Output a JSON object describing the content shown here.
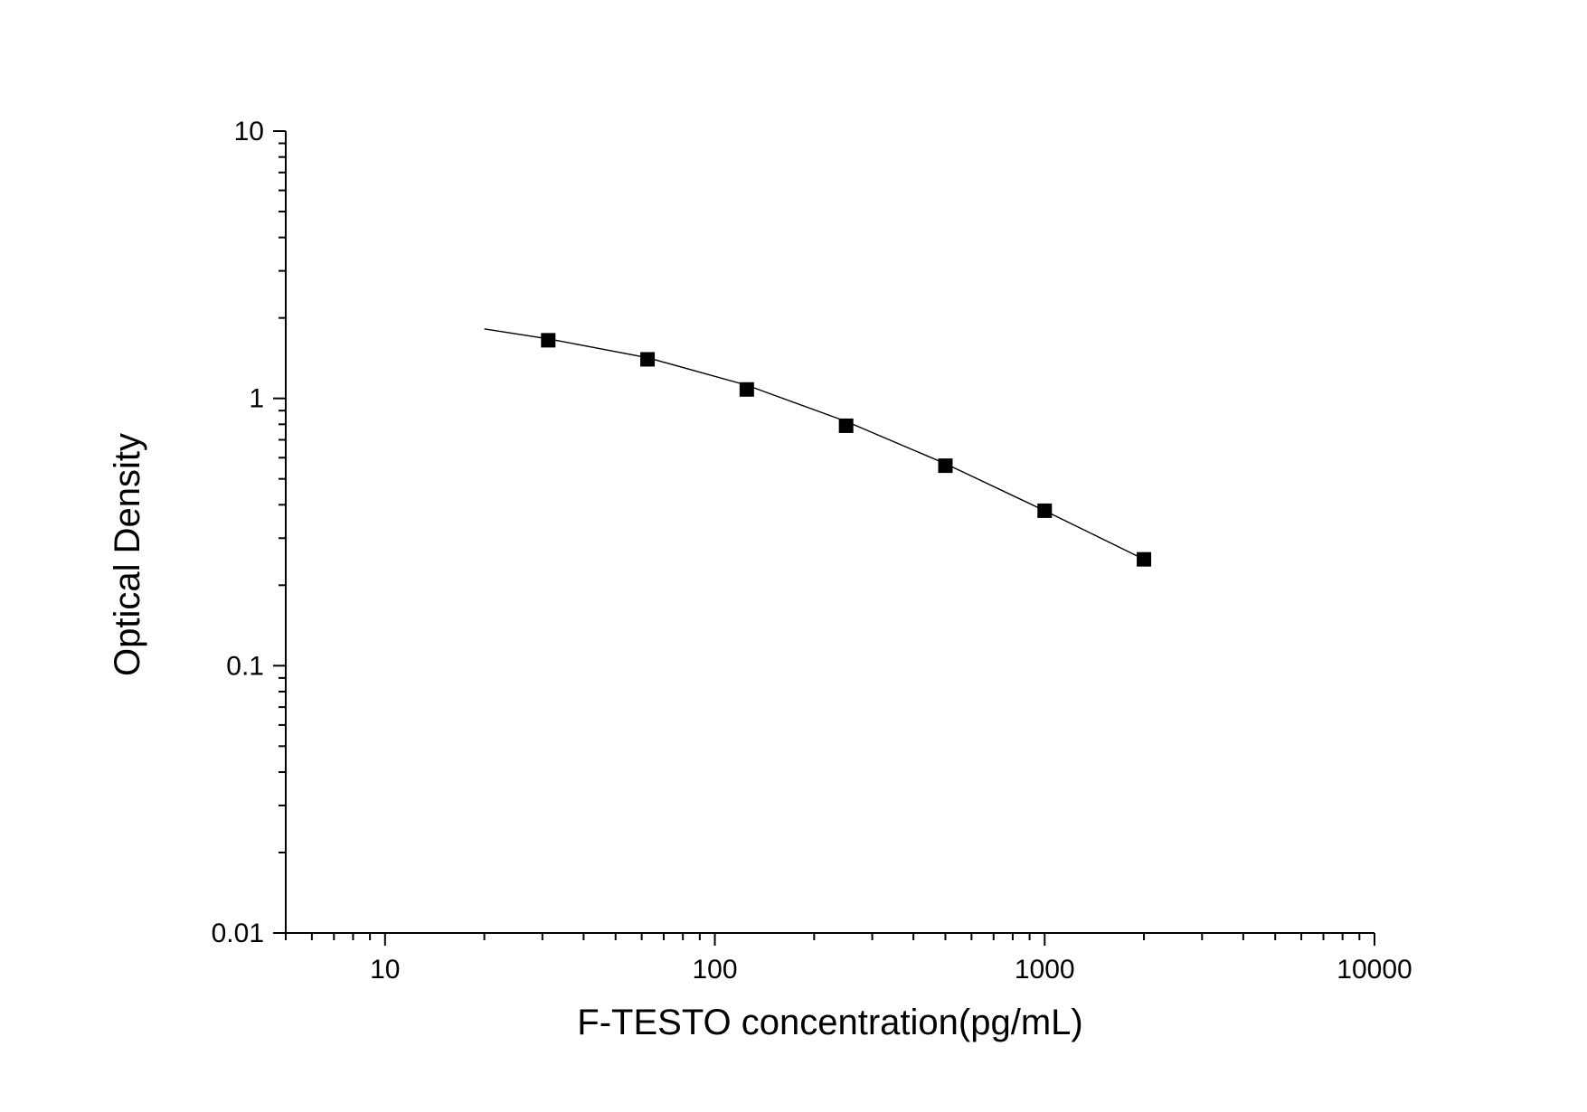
{
  "chart_data": {
    "type": "scatter",
    "title": "",
    "xlabel": "F-TESTO concentration(pg/mL)",
    "ylabel": "Optical Density",
    "x_scale": "log",
    "y_scale": "log",
    "xlim": [
      5,
      10000
    ],
    "ylim": [
      0.01,
      10
    ],
    "x_tick_labels": [
      "10",
      "100",
      "1000",
      "10000"
    ],
    "x_tick_values": [
      10,
      100,
      1000,
      10000
    ],
    "y_tick_labels": [
      "0.01",
      "0.1",
      "1",
      "10"
    ],
    "y_tick_values": [
      0.01,
      0.1,
      1,
      10
    ],
    "grid": false,
    "series": [
      {
        "marker": "square",
        "x": [
          31.25,
          62.5,
          125,
          250,
          500,
          1000,
          2000
        ],
        "y": [
          1.65,
          1.4,
          1.08,
          0.79,
          0.56,
          0.38,
          0.25
        ]
      }
    ],
    "fit_curve": {
      "x": [
        20,
        31.25,
        62.5,
        125,
        250,
        500,
        1000,
        2000
      ],
      "y": [
        1.82,
        1.67,
        1.42,
        1.12,
        0.82,
        0.57,
        0.38,
        0.25
      ]
    },
    "marker_color": "#000000",
    "line_color": "#000000"
  }
}
